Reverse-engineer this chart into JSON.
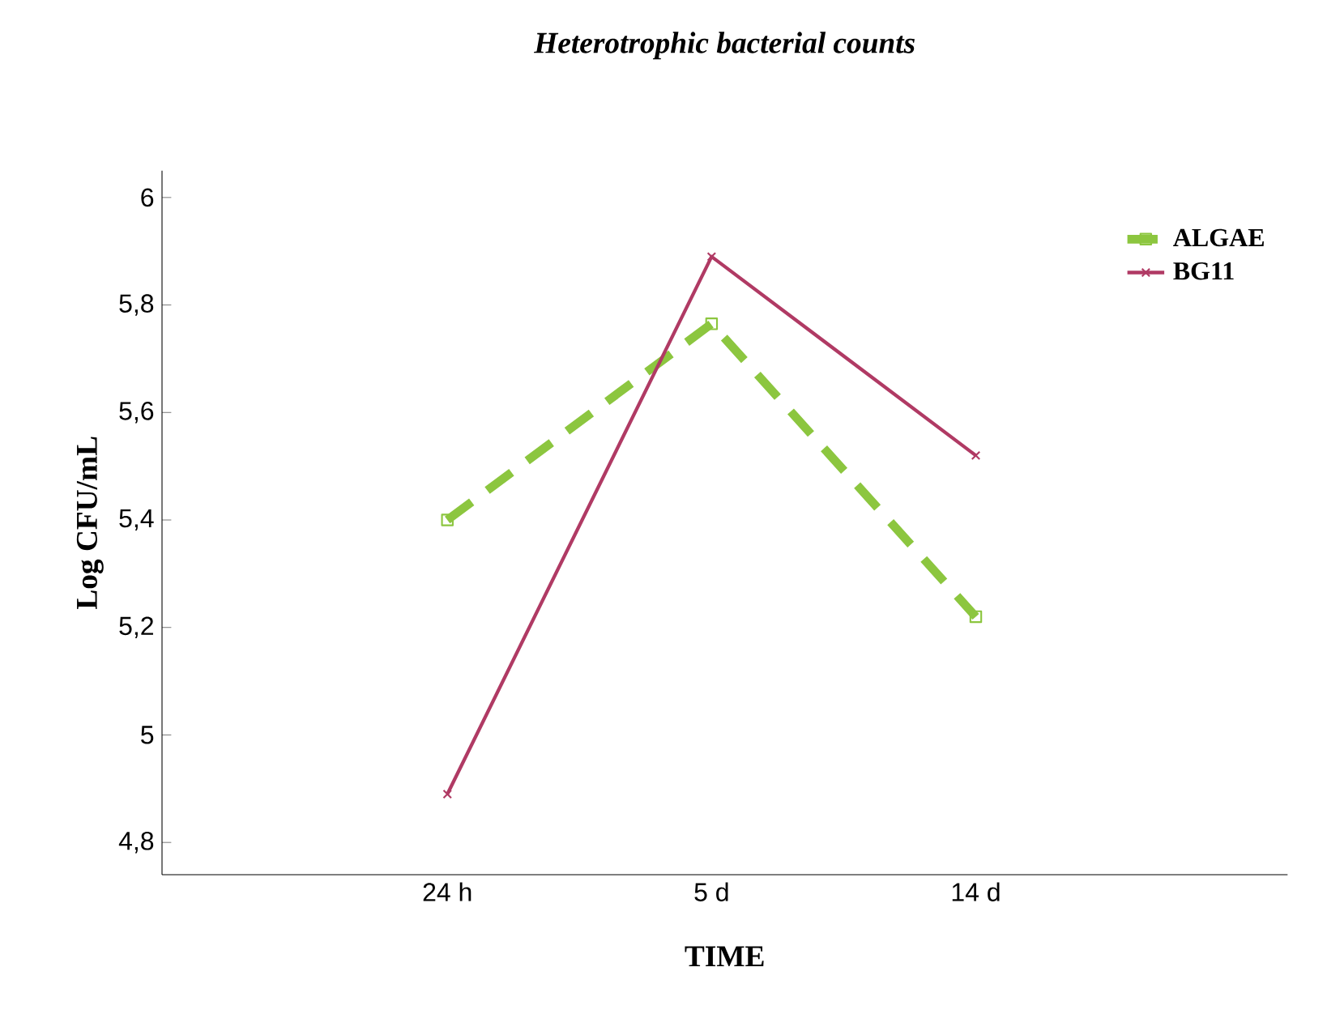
{
  "chart_data": {
    "type": "line",
    "title": "*Heterotrophic bacterial counts*",
    "xlabel": "TIME",
    "ylabel": "Log CFU/mL",
    "categories": [
      "24 h",
      "5 d",
      "14 d"
    ],
    "series": [
      {
        "name": "ALGAE",
        "color": "#8cc63f",
        "values": [
          5.4,
          5.765,
          5.22
        ],
        "line_style": "dashed",
        "marker": "square"
      },
      {
        "name": "BG11",
        "color": "#b03a64",
        "values": [
          4.89,
          5.89,
          5.52
        ],
        "line_style": "solid",
        "marker": "cross"
      }
    ],
    "ylim": [
      4.74,
      6.05
    ],
    "yticks": [
      {
        "value": 4.8,
        "label": "4,8"
      },
      {
        "value": 5,
        "label": "5"
      },
      {
        "value": 5.2,
        "label": "5,2"
      },
      {
        "value": 5.4,
        "label": "5,4"
      },
      {
        "value": 5.6,
        "label": "5,6"
      },
      {
        "value": 5.8,
        "label": "5,8"
      },
      {
        "value": 6,
        "label": "6"
      }
    ],
    "grid": false,
    "legend": "top right"
  }
}
